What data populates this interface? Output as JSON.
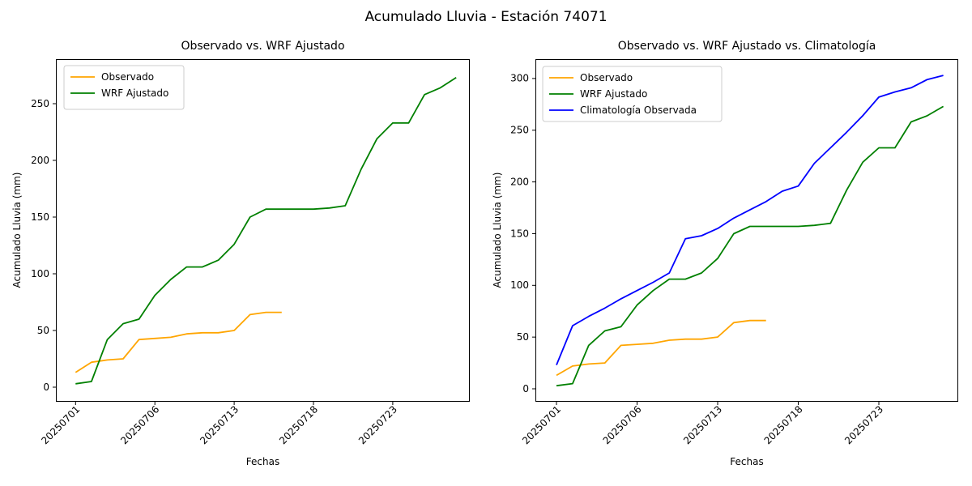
{
  "figure": {
    "suptitle": "Acumulado Lluvia - Estación 74071"
  },
  "chart_data": [
    {
      "type": "line",
      "title": "Observado vs. WRF Ajustado",
      "xlabel": "Fechas",
      "ylabel": "Acumulado Lluvia (mm)",
      "x": [
        0,
        1,
        2,
        3,
        4,
        5,
        6,
        7,
        8,
        9,
        10,
        11,
        12,
        13,
        14,
        15,
        16,
        17,
        18,
        19,
        20,
        21,
        22,
        23,
        24
      ],
      "xtick_positions": [
        0,
        5,
        10,
        15,
        20
      ],
      "xtick_labels": [
        "20250701",
        "20250706",
        "20250713",
        "20250718",
        "20250723"
      ],
      "yticks": [
        0,
        50,
        100,
        150,
        200,
        250
      ],
      "ylim": [
        -12,
        289
      ],
      "xlim": [
        -1.2,
        25
      ],
      "grid": false,
      "legend_position": "upper left",
      "series": [
        {
          "name": "Observado",
          "color": "#FFA500",
          "values": [
            13,
            22,
            24,
            25,
            42,
            43,
            44,
            47,
            48,
            48,
            50,
            64,
            66,
            66
          ]
        },
        {
          "name": "WRF Ajustado",
          "color": "#008000",
          "values": [
            3,
            5,
            42,
            56,
            60,
            81,
            95,
            106,
            106,
            112,
            126,
            150,
            157,
            157,
            157,
            157,
            158,
            160,
            192,
            219,
            233,
            233,
            258,
            264,
            273
          ]
        }
      ]
    },
    {
      "type": "line",
      "title": "Observado vs. WRF Ajustado vs. Climatología",
      "xlabel": "Fechas",
      "ylabel": "Acumulado Lluvia (mm)",
      "x": [
        0,
        1,
        2,
        3,
        4,
        5,
        6,
        7,
        8,
        9,
        10,
        11,
        12,
        13,
        14,
        15,
        16,
        17,
        18,
        19,
        20,
        21,
        22,
        23,
        24
      ],
      "xtick_positions": [
        0,
        5,
        10,
        15,
        20
      ],
      "xtick_labels": [
        "20250701",
        "20250706",
        "20250713",
        "20250718",
        "20250723"
      ],
      "yticks": [
        0,
        50,
        100,
        150,
        200,
        250,
        300
      ],
      "ylim": [
        -11,
        319
      ],
      "xlim": [
        -1.2,
        25
      ],
      "grid": false,
      "legend_position": "upper left",
      "series": [
        {
          "name": "Observado",
          "color": "#FFA500",
          "values": [
            13,
            22,
            24,
            25,
            42,
            43,
            44,
            47,
            48,
            48,
            50,
            64,
            66,
            66
          ]
        },
        {
          "name": "WRF Ajustado",
          "color": "#008000",
          "values": [
            3,
            5,
            42,
            56,
            60,
            81,
            95,
            106,
            106,
            112,
            126,
            150,
            157,
            157,
            157,
            157,
            158,
            160,
            192,
            219,
            233,
            233,
            258,
            264,
            273
          ]
        },
        {
          "name": "Climatología Observada",
          "color": "#0000FF",
          "values": [
            23,
            61,
            70,
            78,
            87,
            95,
            103,
            112,
            145,
            148,
            155,
            165,
            173,
            181,
            191,
            196,
            218,
            233,
            248,
            264,
            282,
            287,
            291,
            299,
            303
          ]
        }
      ]
    }
  ]
}
